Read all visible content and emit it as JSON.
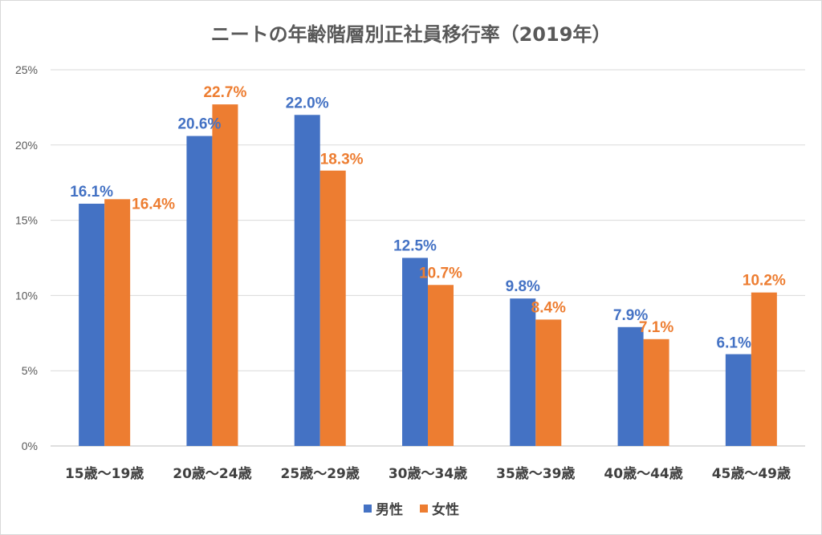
{
  "chart_data": {
    "type": "bar",
    "title": "ニートの年齢階層別正社員移行率（2019年）",
    "xlabel": "",
    "ylabel": "",
    "ylim": [
      0,
      25
    ],
    "yticks": [
      "0%",
      "5%",
      "10%",
      "15%",
      "20%",
      "25%"
    ],
    "ytick_values": [
      0,
      5,
      10,
      15,
      20,
      25
    ],
    "grid": true,
    "legend_position": "bottom",
    "categories": [
      "15歳～19歳",
      "20歳～24歳",
      "25歳～29歳",
      "30歳～34歳",
      "35歳～39歳",
      "40歳～44歳",
      "45歳～49歳"
    ],
    "series": [
      {
        "name": "男性",
        "color": "#4472c4",
        "values": [
          16.1,
          20.6,
          22.0,
          12.5,
          9.8,
          7.9,
          6.1
        ],
        "labels": [
          "16.1%",
          "20.6%",
          "22.0%",
          "12.5%",
          "9.8%",
          "7.9%",
          "6.1%"
        ]
      },
      {
        "name": "女性",
        "color": "#ed7d31",
        "values": [
          16.4,
          22.7,
          18.3,
          10.7,
          8.4,
          7.1,
          10.2
        ],
        "labels": [
          "16.4%",
          "22.7%",
          "18.3%",
          "10.7%",
          "8.4%",
          "7.1%",
          "10.2%"
        ]
      }
    ]
  }
}
